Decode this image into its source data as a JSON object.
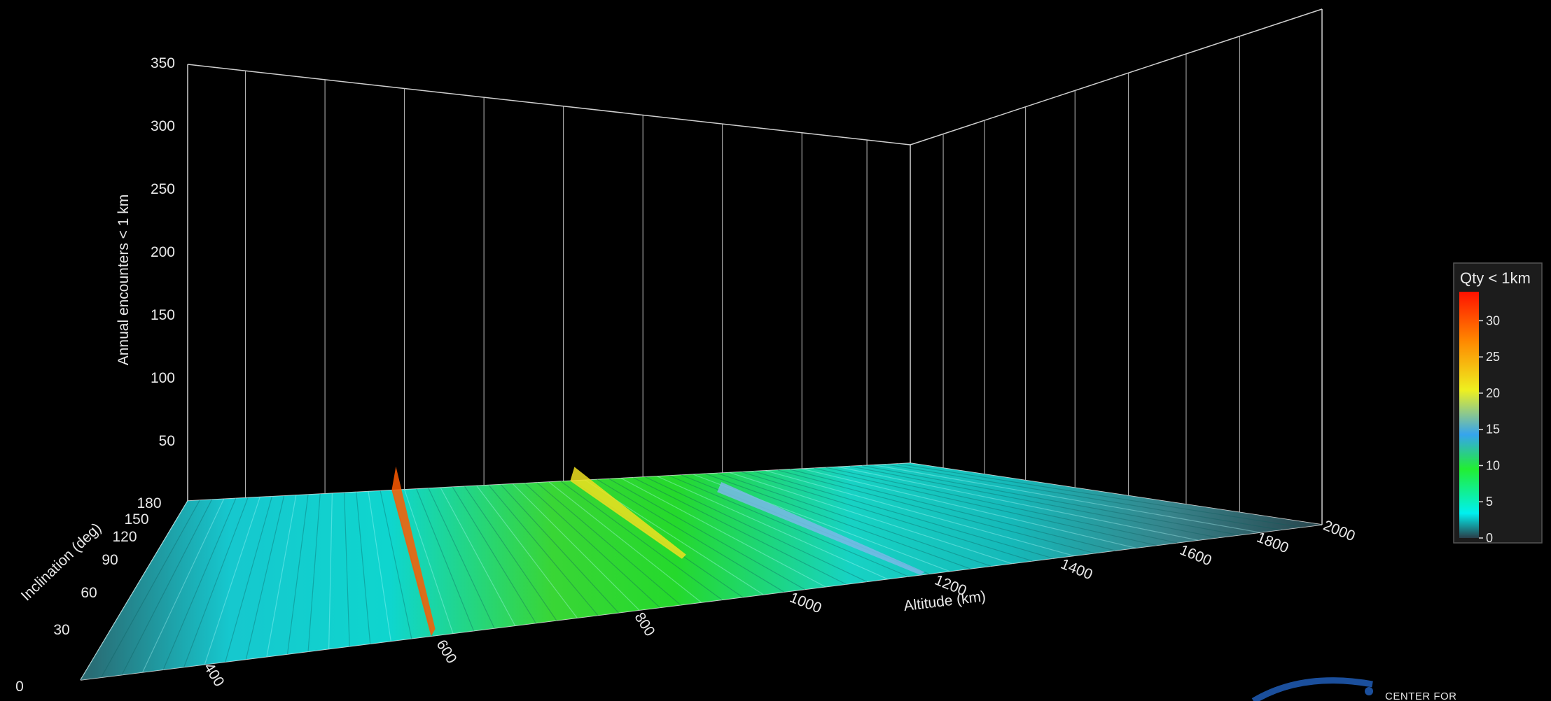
{
  "chart_data": {
    "type": "surface3d",
    "title": "",
    "zlabel": "Annual encounters < 1 km",
    "xlabel": "Altitude (km)",
    "ylabel": "Inclination (deg)",
    "z_ticks": [
      "350",
      "300",
      "250",
      "200",
      "150",
      "100",
      "50"
    ],
    "x_ticks": [
      "400",
      "600",
      "800",
      "1000",
      "1200",
      "1400",
      "1600",
      "1800",
      "2000"
    ],
    "y_ticks": [
      "0",
      "30",
      "60",
      "90",
      "120",
      "150",
      "180"
    ],
    "xlim": [
      300,
      2000
    ],
    "ylim": [
      0,
      180
    ],
    "zlim": [
      0,
      350
    ],
    "colorbar": {
      "title": "Qty < 1km",
      "ticks": [
        "30",
        "25",
        "20",
        "15",
        "10",
        "5",
        "0"
      ],
      "range": [
        0,
        34
      ],
      "colors": [
        "#2a3f4a",
        "#00f0f0",
        "#22ee33",
        "#eef020",
        "#ff8800",
        "#ff1100"
      ]
    },
    "ridges": [
      {
        "altitude": 780,
        "peak": 34,
        "inclination_span": [
          0,
          180
        ]
      },
      {
        "altitude": 1200,
        "peak": 17,
        "inclination_span": [
          60,
          180
        ]
      },
      {
        "altitude": 1450,
        "peak": 10,
        "inclination_span": [
          0,
          150
        ]
      }
    ],
    "grid": true
  },
  "branding": {
    "logo_text": "CENTER FOR"
  },
  "colors": {
    "background": "#000000",
    "axis": "#cfcfcf",
    "legend_bg": "#1c1c1c"
  }
}
